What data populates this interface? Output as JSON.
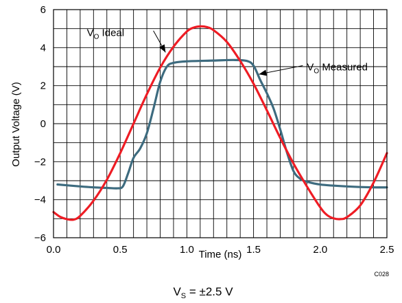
{
  "chart_data": {
    "type": "line",
    "title": "",
    "xlabel": "Time (ns)",
    "ylabel": "Output Voltage (V)",
    "xlim": [
      0,
      2.5
    ],
    "ylim": [
      -6,
      6
    ],
    "x_ticks": [
      0.0,
      0.5,
      1.0,
      1.5,
      2.0,
      2.5
    ],
    "x_tick_labels": [
      "0.0",
      "0.5",
      "1.0",
      "1.5",
      "2.0",
      "2.5"
    ],
    "y_ticks": [
      -6,
      -4,
      -2,
      0,
      2,
      4,
      6
    ],
    "y_tick_labels": [
      "−6",
      "−4",
      "−2",
      "0",
      "2",
      "4",
      "6"
    ],
    "grid": true,
    "code": "C028",
    "footer": {
      "main": "V",
      "sub": "S",
      "rest": " = ±2.5 V"
    },
    "series": [
      {
        "name": "VO Ideal",
        "label_main": "V",
        "label_sub": "O",
        "label_rest": " Ideal",
        "color": "#ee1c24",
        "x": [
          0.0,
          0.05,
          0.1,
          0.15,
          0.2,
          0.3,
          0.4,
          0.5,
          0.6,
          0.7,
          0.8,
          0.9,
          1.0,
          1.05,
          1.1,
          1.15,
          1.2,
          1.3,
          1.4,
          1.5,
          1.6,
          1.7,
          1.8,
          1.9,
          2.0,
          2.05,
          2.1,
          2.15,
          2.2,
          2.3,
          2.4,
          2.5
        ],
        "values": [
          -4.65,
          -4.9,
          -5.02,
          -5.05,
          -4.85,
          -4.05,
          -2.95,
          -1.55,
          0.0,
          1.55,
          2.95,
          4.05,
          4.85,
          5.05,
          5.12,
          5.08,
          4.92,
          4.3,
          3.3,
          2.1,
          0.7,
          -0.75,
          -2.1,
          -3.3,
          -4.4,
          -4.8,
          -4.98,
          -5.02,
          -4.92,
          -4.3,
          -3.1,
          -1.55
        ]
      },
      {
        "name": "VO Measured",
        "label_main": "V",
        "label_sub": "O",
        "label_rest": " Measured",
        "color": "#3d6b7f",
        "x": [
          0.03,
          0.2,
          0.3,
          0.4,
          0.48,
          0.52,
          0.56,
          0.6,
          0.65,
          0.7,
          0.75,
          0.8,
          0.85,
          0.9,
          1.0,
          1.2,
          1.35,
          1.45,
          1.5,
          1.55,
          1.6,
          1.65,
          1.7,
          1.75,
          1.8,
          1.85,
          1.9,
          2.0,
          2.2,
          2.4,
          2.5
        ],
        "values": [
          -3.2,
          -3.3,
          -3.35,
          -3.38,
          -3.4,
          -3.3,
          -2.6,
          -1.8,
          -1.3,
          -0.5,
          0.8,
          2.2,
          3.0,
          3.2,
          3.28,
          3.32,
          3.35,
          3.3,
          3.05,
          2.3,
          1.6,
          0.8,
          -0.3,
          -1.5,
          -2.5,
          -2.9,
          -3.05,
          -3.2,
          -3.3,
          -3.35,
          -3.35
        ]
      }
    ],
    "annotations": [
      {
        "series": 0,
        "label_x": 0.25,
        "label_y": 4.6,
        "arrow_x": 0.84,
        "arrow_y": 3.75
      },
      {
        "series": 1,
        "label_x": 1.9,
        "label_y": 2.8,
        "arrow_x": 1.54,
        "arrow_y": 2.6
      }
    ]
  }
}
